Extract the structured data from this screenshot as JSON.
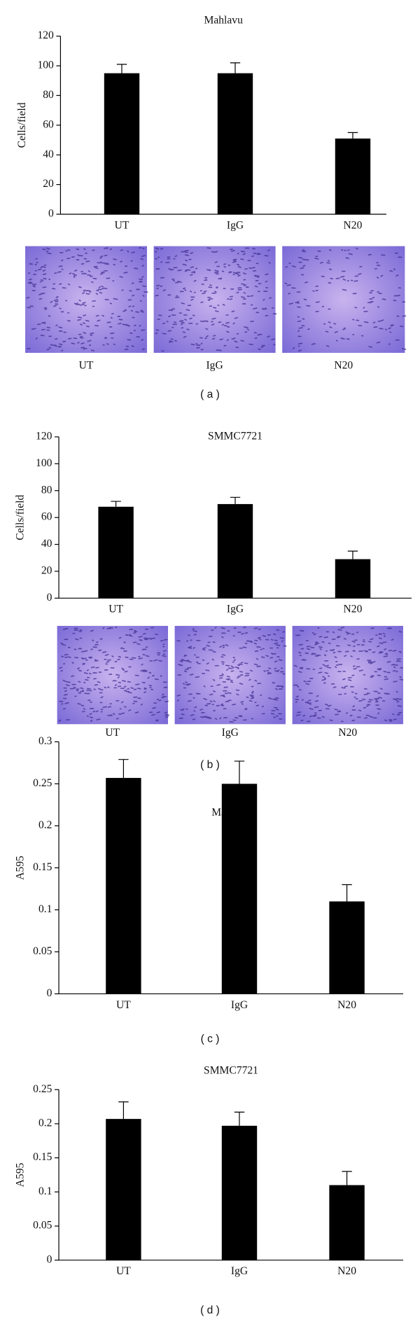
{
  "chart_data": [
    {
      "type": "bar",
      "title": "Mahlavu",
      "y_label": "Cells/field",
      "categories": [
        "UT",
        "IgG",
        "N20"
      ],
      "values": [
        95,
        95,
        51
      ],
      "errors": [
        6,
        7,
        4
      ],
      "color": "#000000",
      "ylim": [
        0,
        120
      ],
      "yticks": [
        0,
        20,
        40,
        60,
        80,
        100,
        120
      ]
    },
    {
      "type": "bar",
      "title": "SMMC7721",
      "y_label": "Cells/field",
      "categories": [
        "UT",
        "IgG",
        "N20"
      ],
      "values": [
        68,
        70,
        29
      ],
      "errors": [
        4,
        5,
        6
      ],
      "color": "#000000",
      "ylim": [
        0,
        120
      ],
      "yticks": [
        0,
        20,
        40,
        60,
        80,
        100,
        120
      ]
    },
    {
      "type": "bar",
      "title": "Malhavu",
      "y_label": "A595",
      "categories": [
        "UT",
        "IgG",
        "N20"
      ],
      "values": [
        0.257,
        0.25,
        0.11
      ],
      "errors": [
        0.022,
        0.027,
        0.02
      ],
      "color": "#000000",
      "ylim": [
        0,
        0.3
      ],
      "yticks": [
        0,
        0.05,
        0.1,
        0.15,
        0.2,
        0.25,
        0.3
      ]
    },
    {
      "type": "bar",
      "title": "SMMC7721",
      "y_label": "A595",
      "categories": [
        "UT",
        "IgG",
        "N20"
      ],
      "values": [
        0.207,
        0.197,
        0.11
      ],
      "errors": [
        0.025,
        0.02,
        0.02
      ],
      "color": "#000000",
      "ylim": [
        0,
        0.25
      ],
      "yticks": [
        0,
        0.05,
        0.1,
        0.15,
        0.2,
        0.25
      ]
    }
  ],
  "panels": [
    {
      "images": [
        "UT",
        "IgG",
        "N20"
      ],
      "label": "( a )"
    },
    {
      "images": [
        "UT",
        "IgG",
        "N20"
      ],
      "label": "( b )"
    },
    {
      "label": "( c )"
    },
    {
      "label": "( d )"
    }
  ]
}
